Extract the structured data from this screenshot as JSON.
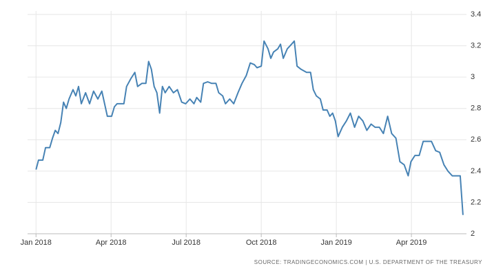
{
  "chart_data": {
    "type": "line",
    "source": "SOURCE: TRADINGECONOMICS.COM | U.S. DEPARTMENT OF THE TREASURY",
    "x": [
      0,
      0.1,
      0.27,
      0.38,
      0.55,
      0.66,
      0.77,
      0.88,
      0.99,
      1.1,
      1.21,
      1.32,
      1.48,
      1.59,
      1.7,
      1.81,
      1.98,
      2.14,
      2.3,
      2.47,
      2.63,
      2.74,
      2.85,
      3.02,
      3.13,
      3.24,
      3.4,
      3.51,
      3.62,
      3.79,
      3.95,
      4.06,
      4.23,
      4.39,
      4.5,
      4.61,
      4.72,
      4.83,
      4.94,
      5.05,
      5.16,
      5.32,
      5.49,
      5.65,
      5.82,
      5.98,
      6.15,
      6.31,
      6.42,
      6.58,
      6.69,
      6.86,
      7.02,
      7.19,
      7.3,
      7.46,
      7.57,
      7.74,
      7.9,
      8.07,
      8.23,
      8.4,
      8.56,
      8.72,
      8.83,
      9.0,
      9.11,
      9.27,
      9.38,
      9.49,
      9.66,
      9.77,
      9.88,
      10.04,
      10.21,
      10.32,
      10.43,
      10.59,
      10.81,
      10.97,
      11.08,
      11.2,
      11.36,
      11.47,
      11.63,
      11.74,
      11.85,
      11.96,
      12.07,
      12.24,
      12.4,
      12.56,
      12.73,
      12.89,
      13.06,
      13.22,
      13.39,
      13.55,
      13.72,
      13.88,
      14.05,
      14.21,
      14.38,
      14.54,
      14.71,
      14.87,
      14.98,
      15.14,
      15.31,
      15.47,
      15.64,
      15.8,
      15.97,
      16.13,
      16.3,
      16.46,
      16.63,
      16.79,
      16.95,
      17.06
    ],
    "series": [
      {
        "color": "#4682b4",
        "values": [
          2.41,
          2.47,
          2.47,
          2.55,
          2.55,
          2.61,
          2.66,
          2.64,
          2.71,
          2.84,
          2.8,
          2.86,
          2.92,
          2.88,
          2.94,
          2.83,
          2.9,
          2.83,
          2.91,
          2.86,
          2.91,
          2.83,
          2.75,
          2.75,
          2.81,
          2.83,
          2.83,
          2.83,
          2.94,
          2.99,
          3.03,
          2.94,
          2.96,
          2.96,
          3.1,
          3.05,
          2.94,
          2.9,
          2.77,
          2.94,
          2.9,
          2.94,
          2.9,
          2.92,
          2.84,
          2.83,
          2.86,
          2.83,
          2.87,
          2.84,
          2.96,
          2.97,
          2.96,
          2.96,
          2.9,
          2.88,
          2.83,
          2.86,
          2.83,
          2.9,
          2.96,
          3.01,
          3.09,
          3.08,
          3.06,
          3.07,
          3.23,
          3.18,
          3.12,
          3.16,
          3.18,
          3.21,
          3.12,
          3.18,
          3.21,
          3.23,
          3.07,
          3.05,
          3.03,
          3.03,
          2.92,
          2.88,
          2.86,
          2.79,
          2.79,
          2.75,
          2.77,
          2.72,
          2.62,
          2.68,
          2.72,
          2.77,
          2.68,
          2.75,
          2.72,
          2.66,
          2.7,
          2.68,
          2.68,
          2.64,
          2.75,
          2.64,
          2.61,
          2.46,
          2.44,
          2.37,
          2.46,
          2.5,
          2.5,
          2.59,
          2.59,
          2.59,
          2.53,
          2.52,
          2.44,
          2.4,
          2.37,
          2.37,
          2.37,
          2.12
        ]
      }
    ],
    "xlim": [
      -0.2,
      17.2
    ],
    "xticks": [
      {
        "value": 0,
        "label": "Jan 2018"
      },
      {
        "value": 3,
        "label": "Apr 2018"
      },
      {
        "value": 6,
        "label": "Jul 2018"
      },
      {
        "value": 9,
        "label": "Oct 2018"
      },
      {
        "value": 12,
        "label": "Jan 2019"
      },
      {
        "value": 15,
        "label": "Apr 2019"
      }
    ],
    "ylim": [
      2,
      3.4
    ],
    "yticks": [
      2,
      2.2,
      2.4,
      2.6,
      2.8,
      3,
      3.2,
      3.4
    ],
    "grid": true
  }
}
